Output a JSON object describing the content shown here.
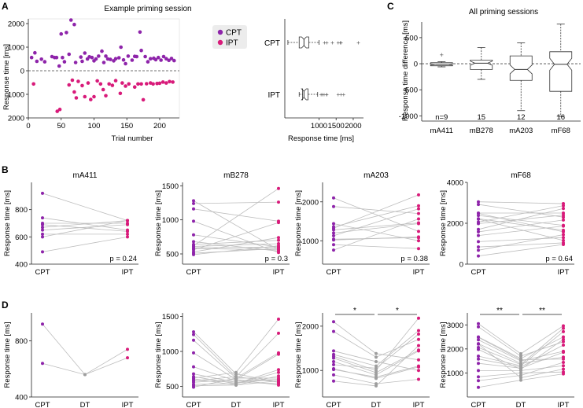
{
  "colors": {
    "cpt": "#8e24aa",
    "ipt": "#d81b7a",
    "dt": "#9e9e9e",
    "line": "#bdbdbd",
    "axis": "#222222"
  },
  "chart_data": {
    "panelA": {
      "letter": "A",
      "title": "Example priming session",
      "scatter": {
        "type": "scatter",
        "xlabel": "Trial number",
        "ylabel": "Response time [ms]",
        "xlim": [
          0,
          230
        ],
        "ylim": [
          -2000,
          2200
        ],
        "xticks": [
          "0",
          "50",
          "100",
          "150",
          "200"
        ],
        "yticks": [
          "2000",
          "1000",
          "0",
          "1000",
          "2000"
        ],
        "legend": [
          "CPT",
          "IPT"
        ],
        "cpt": [
          [
            5,
            560
          ],
          [
            10,
            760
          ],
          [
            13,
            400
          ],
          [
            20,
            490
          ],
          [
            25,
            380
          ],
          [
            36,
            600
          ],
          [
            40,
            560
          ],
          [
            43,
            560
          ],
          [
            47,
            200
          ],
          [
            50,
            1560
          ],
          [
            52,
            560
          ],
          [
            55,
            380
          ],
          [
            58,
            1620
          ],
          [
            62,
            700
          ],
          [
            65,
            2150
          ],
          [
            70,
            1960
          ],
          [
            72,
            350
          ],
          [
            80,
            580
          ],
          [
            82,
            400
          ],
          [
            86,
            750
          ],
          [
            90,
            500
          ],
          [
            93,
            590
          ],
          [
            97,
            560
          ],
          [
            100,
            420
          ],
          [
            103,
            500
          ],
          [
            107,
            620
          ],
          [
            112,
            830
          ],
          [
            115,
            350
          ],
          [
            118,
            620
          ],
          [
            121,
            500
          ],
          [
            125,
            480
          ],
          [
            130,
            420
          ],
          [
            133,
            510
          ],
          [
            138,
            550
          ],
          [
            141,
            1000
          ],
          [
            145,
            460
          ],
          [
            148,
            300
          ],
          [
            152,
            620
          ],
          [
            158,
            450
          ],
          [
            162,
            610
          ],
          [
            165,
            600
          ],
          [
            170,
            1640
          ],
          [
            172,
            860
          ],
          [
            178,
            600
          ],
          [
            182,
            380
          ],
          [
            186,
            510
          ],
          [
            191,
            530
          ],
          [
            194,
            470
          ],
          [
            198,
            560
          ],
          [
            202,
            450
          ],
          [
            206,
            600
          ],
          [
            210,
            510
          ],
          [
            214,
            440
          ],
          [
            218,
            520
          ],
          [
            222,
            430
          ]
        ],
        "ipt": [
          [
            8,
            -560
          ],
          [
            44,
            -1720
          ],
          [
            48,
            -1640
          ],
          [
            62,
            -600
          ],
          [
            67,
            -400
          ],
          [
            70,
            -900
          ],
          [
            73,
            -1150
          ],
          [
            76,
            -450
          ],
          [
            82,
            -630
          ],
          [
            86,
            -1100
          ],
          [
            91,
            -520
          ],
          [
            95,
            -1220
          ],
          [
            100,
            -1100
          ],
          [
            105,
            -430
          ],
          [
            110,
            -560
          ],
          [
            114,
            -800
          ],
          [
            118,
            -1060
          ],
          [
            123,
            -560
          ],
          [
            128,
            -620
          ],
          [
            133,
            -420
          ],
          [
            140,
            -960
          ],
          [
            143,
            -520
          ],
          [
            148,
            -650
          ],
          [
            153,
            -560
          ],
          [
            162,
            -690
          ],
          [
            167,
            -560
          ],
          [
            172,
            -560
          ],
          [
            175,
            -1230
          ],
          [
            180,
            -550
          ],
          [
            186,
            -520
          ],
          [
            190,
            -560
          ],
          [
            196,
            -540
          ],
          [
            200,
            -530
          ],
          [
            205,
            -480
          ],
          [
            210,
            -520
          ],
          [
            215,
            -460
          ],
          [
            220,
            -480
          ]
        ]
      },
      "boxplot": {
        "type": "boxplot",
        "xlabel": "Response time [ms]",
        "xlim": [
          0,
          2300
        ],
        "xticks": [
          "1000",
          "1500",
          "2000"
        ],
        "rows": [
          {
            "label": "CPT",
            "whisker_lo": 90,
            "q1": 420,
            "median": 560,
            "q3": 700,
            "whisker_hi": 1000,
            "outliers": [
              1160,
              1230,
              1390,
              1560,
              1620,
              1650,
              2150
            ]
          },
          {
            "label": "IPT",
            "whisker_lo": 420,
            "q1": 520,
            "median": 560,
            "q3": 680,
            "whisker_hi": 960,
            "outliers": [
              1060,
              1100,
              1150,
              1220,
              1230,
              1560,
              1640,
              1720
            ]
          }
        ]
      }
    },
    "panelC": {
      "letter": "C",
      "title": "All priming sessions",
      "type": "notched-boxplot",
      "ylabel": "Response time difference [ms]",
      "ylim": [
        -1100,
        800
      ],
      "yticks": [
        "500",
        "0",
        "-500",
        "-1000"
      ],
      "categories": [
        "mA411",
        "mB278",
        "mA203",
        "mF68"
      ],
      "counts": [
        "n=9",
        "15",
        "12",
        "16"
      ],
      "boxes": [
        {
          "lo": -60,
          "q1": -40,
          "med": -10,
          "q3": 20,
          "hi": 40,
          "notch": 25,
          "outliers": [
            170
          ]
        },
        {
          "lo": -300,
          "q1": -110,
          "med": 10,
          "q3": 70,
          "hi": 310,
          "notch": 80,
          "outliers": []
        },
        {
          "lo": -900,
          "q1": -320,
          "med": -110,
          "q3": 150,
          "hi": 400,
          "notch": 170,
          "outliers": []
        },
        {
          "lo": -1010,
          "q1": -530,
          "med": -10,
          "q3": 230,
          "hi": 760,
          "notch": 230,
          "outliers": []
        }
      ]
    },
    "panelB": {
      "letter": "B",
      "type": "paired-line",
      "ylabel": "Response time [ms]",
      "xcats": [
        "CPT",
        "IPT"
      ],
      "plots": [
        {
          "title": "mA411",
          "ymin": 400,
          "ymax": 1000,
          "yticks": [
            [
              "400",
              400
            ],
            [
              "600",
              600
            ],
            [
              "800",
              800
            ]
          ],
          "p": "p = 0.24",
          "pairs": [
            [
              920,
              720
            ],
            [
              740,
              650
            ],
            [
              700,
              700
            ],
            [
              690,
              640
            ],
            [
              670,
              720
            ],
            [
              650,
              690
            ],
            [
              620,
              620
            ],
            [
              600,
              720
            ],
            [
              490,
              600
            ]
          ]
        },
        {
          "title": "mB278",
          "ymin": 350,
          "ymax": 1550,
          "yticks": [
            [
              "500",
              500
            ],
            [
              "1000",
              1000
            ],
            [
              "1500",
              1500
            ]
          ],
          "p": "p = 0.3",
          "pairs": [
            [
              1280,
              560
            ],
            [
              1240,
              1260
            ],
            [
              1160,
              980
            ],
            [
              980,
              520
            ],
            [
              780,
              600
            ],
            [
              680,
              540
            ],
            [
              640,
              700
            ],
            [
              620,
              1460
            ],
            [
              610,
              650
            ],
            [
              590,
              600
            ],
            [
              560,
              960
            ],
            [
              530,
              740
            ],
            [
              510,
              580
            ],
            [
              490,
              620
            ],
            [
              580,
              560
            ]
          ]
        },
        {
          "title": "mA203",
          "ymin": 400,
          "ymax": 2500,
          "yticks": [
            [
              "1000",
              1000
            ],
            [
              "2000",
              2000
            ]
          ],
          "p": "p = 0.38",
          "pairs": [
            [
              2100,
              1240
            ],
            [
              1880,
              1700
            ],
            [
              1440,
              1000
            ],
            [
              1360,
              1900
            ],
            [
              1320,
              2180
            ],
            [
              1280,
              1460
            ],
            [
              1200,
              1440
            ],
            [
              1020,
              1100
            ],
            [
              900,
              800
            ],
            [
              760,
              1560
            ],
            [
              1130,
              1820
            ],
            [
              1040,
              1080
            ]
          ]
        },
        {
          "title": "mF68",
          "ymin": 0,
          "ymax": 4000,
          "yticks": [
            [
              "0",
              0
            ],
            [
              "2000",
              2000
            ],
            [
              "4000",
              4000
            ]
          ],
          "p": "p = 0.64",
          "pairs": [
            [
              3050,
              2960
            ],
            [
              2920,
              2300
            ],
            [
              2500,
              2500
            ],
            [
              2380,
              1900
            ],
            [
              2220,
              1660
            ],
            [
              2060,
              2860
            ],
            [
              1700,
              2720
            ],
            [
              1580,
              2160
            ],
            [
              1400,
              1860
            ],
            [
              1100,
              1300
            ],
            [
              840,
              1040
            ],
            [
              680,
              1440
            ],
            [
              400,
              960
            ],
            [
              2480,
              1580
            ],
            [
              1980,
              2400
            ],
            [
              2200,
              1160
            ]
          ]
        }
      ]
    },
    "panelD": {
      "letter": "D",
      "type": "triple-line",
      "ylabel": "Response time [ms]",
      "xcats": [
        "CPT",
        "DT",
        "IPT"
      ],
      "plots": [
        {
          "ymin": 400,
          "ymax": 1000,
          "yticks": [
            [
              "400",
              400
            ],
            [
              "800",
              800
            ]
          ],
          "sig": [],
          "triples": [
            [
              920,
              560,
              740
            ],
            [
              640,
              560,
              680
            ]
          ]
        },
        {
          "ymin": 350,
          "ymax": 1550,
          "yticks": [
            [
              "500",
              500
            ],
            [
              "1000",
              1000
            ],
            [
              "1500",
              1500
            ]
          ],
          "sig": [],
          "triples": [
            [
              1280,
              680,
              560
            ],
            [
              1240,
              640,
              1260
            ],
            [
              1160,
              620,
              980
            ],
            [
              980,
              600,
              520
            ],
            [
              780,
              580,
              600
            ],
            [
              680,
              560,
              540
            ],
            [
              640,
              540,
              700
            ],
            [
              620,
              700,
              1460
            ],
            [
              610,
              520,
              650
            ],
            [
              590,
              560,
              600
            ],
            [
              560,
              600,
              960
            ],
            [
              530,
              540,
              740
            ],
            [
              510,
              520,
              580
            ],
            [
              490,
              620,
              620
            ],
            [
              580,
              640,
              560
            ]
          ]
        },
        {
          "ymin": 400,
          "ymax": 2300,
          "yticks": [
            [
              "1000",
              1000
            ],
            [
              "2000",
              2000
            ]
          ],
          "sig": [
            {
              "label": "*",
              "from": 0,
              "to": 1
            },
            {
              "label": "*",
              "from": 1,
              "to": 2
            }
          ],
          "triples": [
            [
              2100,
              1380,
              1240
            ],
            [
              1880,
              1300,
              1700
            ],
            [
              1440,
              1200,
              1000
            ],
            [
              1360,
              1100,
              1900
            ],
            [
              1320,
              1000,
              2180
            ],
            [
              1280,
              950,
              1460
            ],
            [
              1200,
              900,
              1440
            ],
            [
              1020,
              850,
              1100
            ],
            [
              900,
              700,
              800
            ],
            [
              760,
              650,
              1560
            ],
            [
              1130,
              1050,
              1820
            ],
            [
              1040,
              820,
              1080
            ]
          ]
        },
        {
          "ymin": 0,
          "ymax": 3500,
          "yticks": [
            [
              "1000",
              1000
            ],
            [
              "2000",
              2000
            ],
            [
              "3000",
              3000
            ]
          ],
          "sig": [
            {
              "label": "**",
              "from": 0,
              "to": 1
            },
            {
              "label": "**",
              "from": 1,
              "to": 2
            }
          ],
          "triples": [
            [
              3050,
              1800,
              2960
            ],
            [
              2920,
              1700,
              2300
            ],
            [
              2500,
              1600,
              2500
            ],
            [
              2380,
              1500,
              1900
            ],
            [
              2220,
              1400,
              1660
            ],
            [
              2060,
              1350,
              2860
            ],
            [
              1700,
              1300,
              2720
            ],
            [
              1580,
              1250,
              2160
            ],
            [
              1400,
              1200,
              1860
            ],
            [
              1100,
              1100,
              1300
            ],
            [
              840,
              1000,
              1040
            ],
            [
              680,
              900,
              1440
            ],
            [
              400,
              700,
              960
            ],
            [
              2480,
              1550,
              1580
            ],
            [
              1980,
              1150,
              2400
            ],
            [
              2200,
              800,
              1160
            ]
          ]
        }
      ]
    }
  }
}
